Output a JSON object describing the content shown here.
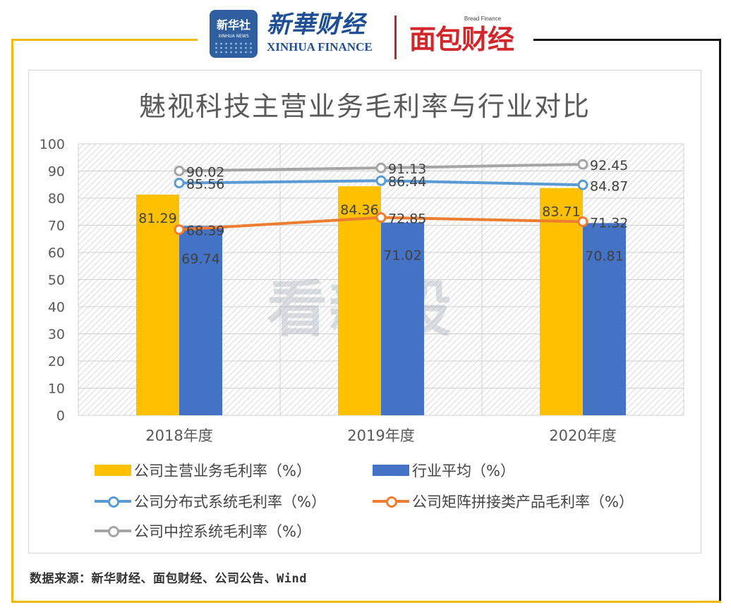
{
  "header": {
    "logo_xinhua_cn": "新华社",
    "logo_xinhua_en": "XINHUA NEWS",
    "logo_finance_cn": "新華财经",
    "logo_finance_en": "XINHUA FINANCE",
    "logo_bread_en": "Bread Finance",
    "logo_bread_cn": "面包财经"
  },
  "colors": {
    "frame_yellow": "#f2b90f",
    "bar_company": "#ffc000",
    "bar_industry": "#4472c4",
    "line_distributed": "#5b9bd5",
    "line_matrix": "#ed7d31",
    "line_central": "#a5a5a5"
  },
  "watermark": "看新股",
  "chart_data": {
    "type": "bar",
    "title": "魅视科技主营业务毛利率与行业对比",
    "categories": [
      "2018年度",
      "2019年度",
      "2020年度"
    ],
    "ylim": [
      0,
      100
    ],
    "yticks": [
      0,
      10,
      20,
      30,
      40,
      50,
      60,
      70,
      80,
      90,
      100
    ],
    "grid": true,
    "legend_position": "bottom",
    "bar_series": [
      {
        "name": "公司主营业务毛利率（%）",
        "values": [
          81.29,
          84.36,
          83.71
        ],
        "labels": [
          "81.29",
          "84.36",
          "83.71"
        ],
        "color": "#ffc000"
      },
      {
        "name": "行业平均（%）",
        "values": [
          69.74,
          71.02,
          70.81
        ],
        "labels": [
          "69.74",
          "71.02",
          "70.81"
        ],
        "color": "#4472c4"
      }
    ],
    "line_series": [
      {
        "name": "公司分布式系统毛利率（%）",
        "values": [
          85.56,
          86.44,
          84.87
        ],
        "labels": [
          "85.56",
          "86.44",
          "84.87"
        ],
        "color": "#5b9bd5"
      },
      {
        "name": "公司矩阵拼接类产品毛利率（%）",
        "values": [
          68.39,
          72.85,
          71.32
        ],
        "labels": [
          "68.39",
          "72.85",
          "71.32"
        ],
        "color": "#ed7d31"
      },
      {
        "name": "公司中控系统毛利率（%）",
        "values": [
          90.02,
          91.13,
          92.45
        ],
        "labels": [
          "90.02",
          "91.13",
          "92.45"
        ],
        "color": "#a5a5a5"
      }
    ]
  },
  "source_text": "数据来源：新华财经、面包财经、公司公告、Wind"
}
